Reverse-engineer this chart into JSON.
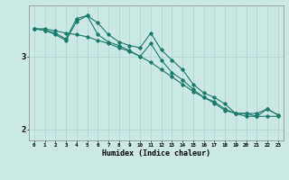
{
  "background_color": "#cce8e4",
  "grid_color": "#aad4d0",
  "line_color": "#1a7a6e",
  "xlabel": "Humidex (Indice chaleur)",
  "x_values": [
    0,
    1,
    2,
    3,
    4,
    5,
    6,
    7,
    8,
    9,
    10,
    11,
    12,
    13,
    14,
    15,
    16,
    17,
    18,
    19,
    20,
    21,
    22,
    23
  ],
  "line1": [
    3.38,
    3.38,
    3.35,
    3.32,
    3.3,
    3.27,
    3.22,
    3.18,
    3.12,
    3.07,
    3.0,
    2.92,
    2.82,
    2.72,
    2.62,
    2.52,
    2.44,
    2.36,
    2.26,
    2.22,
    2.18,
    2.18,
    2.18,
    2.18
  ],
  "line2": [
    3.38,
    3.36,
    3.3,
    3.22,
    3.48,
    3.56,
    3.46,
    3.3,
    3.2,
    3.15,
    3.12,
    3.32,
    3.09,
    2.95,
    2.82,
    2.62,
    2.5,
    2.44,
    2.35,
    2.22,
    2.22,
    2.18,
    2.28,
    2.2
  ],
  "line3": [
    3.38,
    3.36,
    3.32,
    3.24,
    3.52,
    3.56,
    3.3,
    3.2,
    3.15,
    3.08,
    3.0,
    3.18,
    2.95,
    2.78,
    2.68,
    2.55,
    2.44,
    2.38,
    2.28,
    2.22,
    2.22,
    2.22,
    2.28,
    2.2
  ],
  "ylim": [
    1.85,
    3.7
  ],
  "xlim": [
    -0.5,
    23.5
  ],
  "figsize": [
    3.2,
    2.0
  ],
  "dpi": 100
}
